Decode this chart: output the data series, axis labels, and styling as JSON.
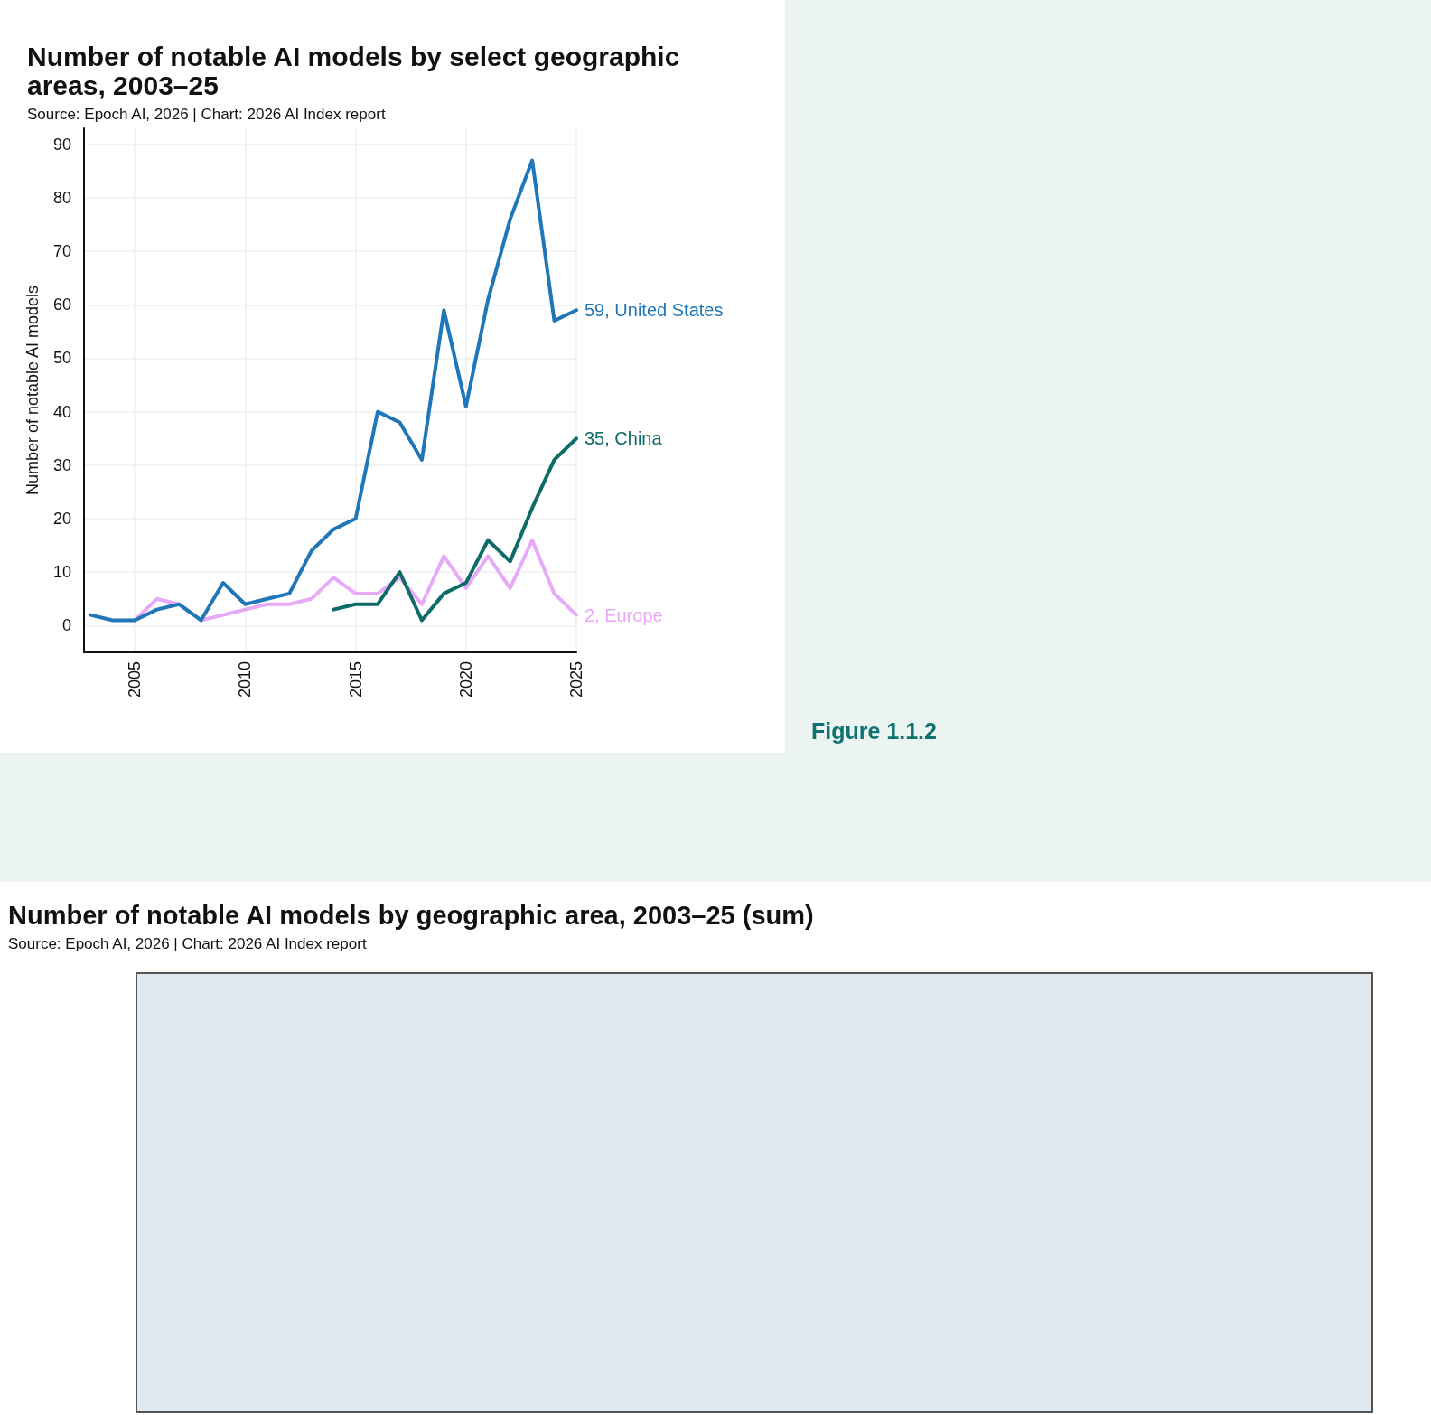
{
  "chart_data": [
    {
      "type": "line",
      "title": "Number of notable AI models by select geographic areas, 2003–25",
      "subtitle": "Source: Epoch AI, 2026 | Chart: 2026 AI Index report",
      "ylabel": "Number of notable AI models",
      "annotations": [
        "Figure 1.1.2"
      ],
      "x": [
        2003,
        2004,
        2005,
        2006,
        2007,
        2008,
        2009,
        2010,
        2011,
        2012,
        2013,
        2014,
        2015,
        2016,
        2017,
        2018,
        2019,
        2020,
        2021,
        2022,
        2023,
        2024,
        2025
      ],
      "series": [
        {
          "color": "#1f77b9",
          "values": [
            2,
            1,
            1,
            3,
            4,
            1,
            8,
            4,
            5,
            6,
            14,
            18,
            20,
            40,
            38,
            31,
            59,
            41,
            61,
            76,
            87,
            57,
            59
          ],
          "value_labels": [
            null,
            null,
            null,
            null,
            null,
            null,
            null,
            null,
            null,
            null,
            null,
            null,
            null,
            null,
            null,
            null,
            null,
            null,
            null,
            null,
            null,
            null,
            "59, United States"
          ]
        },
        {
          "color": "#0e6b68",
          "values": [
            null,
            null,
            null,
            null,
            null,
            null,
            null,
            null,
            null,
            null,
            null,
            3,
            4,
            4,
            10,
            1,
            6,
            8,
            16,
            12,
            22,
            31,
            35
          ],
          "value_labels": [
            null,
            null,
            null,
            null,
            null,
            null,
            null,
            null,
            null,
            null,
            null,
            null,
            null,
            null,
            null,
            null,
            null,
            null,
            null,
            null,
            null,
            null,
            "35, China"
          ]
        },
        {
          "color": "#e8a9f8",
          "values": [
            null,
            null,
            1,
            5,
            4,
            1,
            2,
            3,
            4,
            4,
            5,
            9,
            6,
            6,
            9,
            4,
            13,
            7,
            13,
            7,
            16,
            6,
            2
          ],
          "value_labels": [
            null,
            null,
            null,
            null,
            null,
            null,
            null,
            null,
            null,
            null,
            null,
            null,
            null,
            null,
            null,
            null,
            null,
            null,
            null,
            null,
            null,
            null,
            "2, Europe"
          ]
        }
      ],
      "xlim": [
        2002.7,
        2025
      ],
      "xticks": [
        2005,
        2010,
        2015,
        2020,
        2025
      ],
      "ylim": [
        -5,
        93
      ],
      "yticks": [
        0,
        10,
        20,
        30,
        40,
        50,
        60,
        70,
        80,
        90
      ],
      "grid": true
    },
    {
      "type": "other",
      "title": "Number of notable AI models by geographic area, 2003–25 (sum)",
      "subtitle": "Source: Epoch AI, 2026 | Chart: 2026 AI Index report"
    }
  ]
}
